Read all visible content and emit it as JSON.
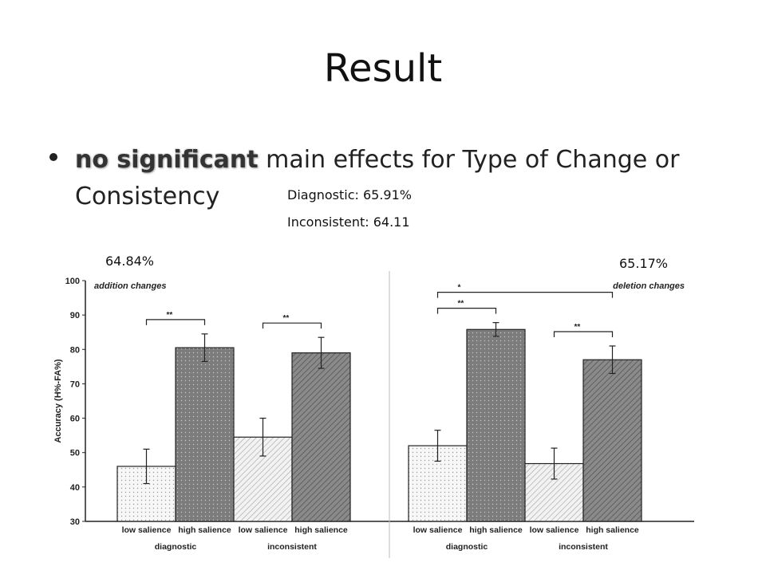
{
  "slide": {
    "title": "Result",
    "bullet": {
      "emphasis": "no significant",
      "rest": " main effects for Type of Change or Consistency"
    },
    "note_diagnostic": "Diagnostic: 65.91%",
    "note_inconsistent": "Inconsistent:  64.11",
    "note_addition": "64.84%",
    "note_deletion": "65.17%"
  },
  "chart_data": [
    {
      "type": "bar",
      "title": "addition changes",
      "ylabel": "Accuracy (H%-FA%)",
      "ylim": [
        30,
        100
      ],
      "yticks": [
        30,
        40,
        50,
        60,
        70,
        80,
        90,
        100
      ],
      "groups": [
        "diagnostic",
        "inconsistent"
      ],
      "categories": [
        "low salience",
        "high salience",
        "low salience",
        "high salience"
      ],
      "values": [
        46,
        80.5,
        54.5,
        79
      ],
      "errors": [
        5,
        4,
        5.5,
        4.5
      ],
      "significance": [
        {
          "from": 0,
          "to": 1,
          "label": "**"
        },
        {
          "from": 2,
          "to": 3,
          "label": "**"
        }
      ]
    },
    {
      "type": "bar",
      "title": "deletion changes",
      "ylim": [
        30,
        100
      ],
      "groups": [
        "diagnostic",
        "inconsistent"
      ],
      "categories": [
        "low salience",
        "high salience",
        "low salience",
        "high salience"
      ],
      "values": [
        52,
        85.8,
        46.8,
        77
      ],
      "errors": [
        4.5,
        2,
        4.5,
        4
      ],
      "significance": [
        {
          "from": 0,
          "to": 1,
          "label": "**"
        },
        {
          "from": 0,
          "to": 3,
          "label": "*"
        },
        {
          "from": 2,
          "to": 3,
          "label": "**"
        }
      ]
    }
  ]
}
